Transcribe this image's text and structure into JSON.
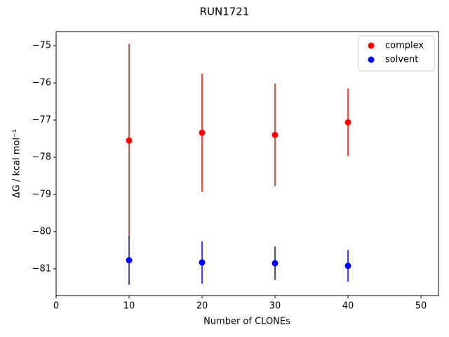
{
  "chart_data": {
    "type": "errorbar-scatter",
    "title": "RUN1721",
    "x_label": "Number of CLONEs",
    "y_label": "ΔG / kcal mol⁻¹",
    "xlim": [
      0,
      52.4
    ],
    "ylim": [
      -81.72,
      -74.62
    ],
    "xticks": [
      0,
      10,
      20,
      30,
      40,
      50
    ],
    "yticks": [
      {
        "value": -81,
        "label": "−81"
      },
      {
        "value": -80,
        "label": "−80"
      },
      {
        "value": -79,
        "label": "−79"
      },
      {
        "value": -78,
        "label": "−78"
      },
      {
        "value": -77,
        "label": "−77"
      },
      {
        "value": -76,
        "label": "−76"
      },
      {
        "value": -75,
        "label": "−75"
      }
    ],
    "legend": "upper right",
    "series": [
      {
        "name": "complex",
        "color": "#ff0000",
        "x": [
          10,
          20,
          30,
          40
        ],
        "values": [
          -77.55,
          -77.34,
          -77.4,
          -77.06
        ],
        "errors": [
          2.6,
          1.59,
          1.38,
          0.91
        ]
      },
      {
        "name": "solvent",
        "color": "#0000ff",
        "x": [
          10,
          20,
          30,
          40
        ],
        "values": [
          -80.77,
          -80.83,
          -80.85,
          -80.92
        ],
        "errors": [
          0.66,
          0.57,
          0.45,
          0.43
        ]
      }
    ]
  }
}
